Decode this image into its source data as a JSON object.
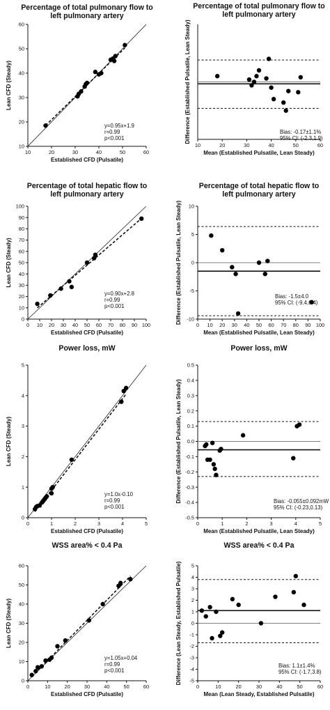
{
  "chart_data": [
    {
      "type": "scatter",
      "title": [
        "Percentage of total pulmonary flow to",
        "left pulmonary artery"
      ],
      "xlabel": "Established CFD (Pulsatile)",
      "ylabel": "Lean CFD (Steady)",
      "xlim": [
        10,
        60
      ],
      "ylim": [
        10,
        60
      ],
      "xticks": [
        10,
        20,
        30,
        40,
        50,
        60
      ],
      "yticks": [
        10,
        20,
        30,
        40,
        50,
        60
      ],
      "identity_line": true,
      "fit": {
        "slope": 0.95,
        "intercept": 1.9
      },
      "stats": [
        "y=0.95x+1.9",
        "r=0.99",
        "p<0.001"
      ],
      "x": [
        17.5,
        31,
        31.5,
        32.5,
        34,
        34.5,
        35,
        38.5,
        40,
        41,
        45,
        46,
        46.5,
        47,
        51
      ],
      "y": [
        18.5,
        30.5,
        31.5,
        32.5,
        34.5,
        35.5,
        36,
        40.5,
        39.5,
        40,
        45.5,
        46,
        45,
        47,
        51.5
      ]
    },
    {
      "type": "scatter",
      "title": [
        "Percentage of total pulmonary flow to",
        "left pulmonary artery"
      ],
      "xlabel": "Mean (Established Pulsatile, Lean Steady)",
      "ylabel": "Difference (Established Pulsatile, Lean Steady)",
      "xlim": [
        10,
        60
      ],
      "ylim": [
        -5,
        5
      ],
      "xticks": [
        10,
        20,
        30,
        40,
        50,
        60
      ],
      "bias": -0.17,
      "loa": [
        -2.3,
        1.9
      ],
      "stats": [
        "Bias: -0.17±1.1%",
        "95% CI: (-2.3,1.9)"
      ],
      "x": [
        18,
        31,
        32,
        33,
        34,
        35,
        38,
        39,
        40,
        41,
        45,
        46,
        47,
        51,
        52
      ],
      "y": [
        0.5,
        0.2,
        -0.3,
        0,
        0.5,
        1.0,
        0.3,
        2.0,
        -0.5,
        -1.5,
        -1.8,
        -2.5,
        -0.8,
        -0.9,
        0.4
      ]
    },
    {
      "type": "scatter",
      "title": [
        "Percentage of total hepatic flow to",
        "left pulmonary artery"
      ],
      "xlabel": "Established CFD (Pulsatile)",
      "ylabel": "Lean CFD (Steady)",
      "xlim": [
        0,
        100
      ],
      "ylim": [
        0,
        100
      ],
      "xticks": [
        0,
        10,
        20,
        30,
        40,
        50,
        60,
        70,
        80,
        90,
        100
      ],
      "yticks": [
        0,
        10,
        20,
        30,
        40,
        50,
        60,
        70,
        80,
        90,
        100
      ],
      "identity_line": true,
      "fit": {
        "slope": 0.9,
        "intercept": 2.8
      },
      "stats": [
        "y=0.90x+2.8",
        "r=0.99",
        "p<0.001"
      ],
      "x": [
        8,
        19,
        28,
        35,
        37,
        50,
        56,
        57,
        96
      ],
      "y": [
        13.5,
        21,
        27,
        33.5,
        28.5,
        50,
        54,
        57,
        89
      ]
    },
    {
      "type": "scatter",
      "title": [
        "Percentage of total hepatic flow to",
        "left pulmonary artery"
      ],
      "xlabel": "Mean (Established Pulsatile, Lean Steady)",
      "ylabel": "Difference (Established Pulsatile, Lean Steady)",
      "xlim": [
        0,
        100
      ],
      "ylim": [
        -10,
        10
      ],
      "xticks": [
        0,
        10,
        20,
        30,
        40,
        50,
        60,
        70,
        80,
        90,
        100
      ],
      "yticks": [
        -10,
        -5,
        0,
        5,
        10
      ],
      "bias": -1.5,
      "loa": [
        -9.4,
        6.4
      ],
      "stats": [
        "Bias: -1.5±4.0",
        "95% CI: (-9.4,6.4)"
      ],
      "x": [
        11,
        20,
        28,
        31,
        33,
        50,
        55,
        57,
        93
      ],
      "y": [
        4.8,
        2.2,
        -0.8,
        -2,
        -9,
        0,
        -2,
        0.3,
        -7
      ]
    },
    {
      "type": "scatter",
      "title": [
        "Power loss, mW"
      ],
      "xlabel": "Established CFD (Pulsatile)",
      "ylabel": "Lean CFD (Steady)",
      "xlim": [
        0,
        5
      ],
      "ylim": [
        0,
        5
      ],
      "xticks": [
        0,
        1,
        2,
        3,
        4,
        5
      ],
      "yticks": [
        0,
        1,
        2,
        3,
        4,
        5
      ],
      "identity_line": true,
      "fit": {
        "slope": 1.0,
        "intercept": -0.1
      },
      "stats": [
        "y=1.0x-0.10",
        "r=0.99",
        "p<0.001"
      ],
      "x": [
        0.3,
        0.35,
        0.4,
        0.5,
        0.6,
        0.65,
        0.7,
        0.75,
        0.8,
        1.0,
        1.0,
        1.05,
        1.85,
        3.95,
        4.05,
        4.15
      ],
      "y": [
        0.28,
        0.35,
        0.38,
        0.4,
        0.5,
        0.55,
        0.6,
        0.65,
        0.7,
        0.8,
        0.95,
        1.0,
        1.9,
        3.8,
        4.15,
        4.25
      ]
    },
    {
      "type": "scatter",
      "title": [
        "Power loss, mW"
      ],
      "xlabel": "Mean (Established Pulsatile, Lean Steady)",
      "ylabel": "Difference (Established Pulsatile, Lean Steady)",
      "xlim": [
        0,
        5
      ],
      "ylim": [
        -0.5,
        0.5
      ],
      "xticks": [
        0,
        1,
        2,
        3,
        4,
        5
      ],
      "yticks": [
        -0.5,
        -0.4,
        -0.3,
        -0.2,
        -0.1,
        0.0,
        0.1,
        0.2,
        0.3,
        0.4,
        0.5
      ],
      "bias": -0.055,
      "loa": [
        -0.23,
        0.13
      ],
      "stats": [
        "Bias: -0.055±0.092mW",
        "95% CI: (-0.23,0.13)"
      ],
      "x": [
        0.3,
        0.35,
        0.4,
        0.5,
        0.6,
        0.65,
        0.7,
        0.75,
        0.9,
        0.95,
        1.85,
        3.9,
        4.05,
        4.15
      ],
      "y": [
        -0.03,
        -0.02,
        -0.12,
        -0.12,
        -0.01,
        -0.15,
        -0.18,
        -0.22,
        -0.06,
        -0.05,
        0.04,
        -0.11,
        0.1,
        0.11
      ]
    },
    {
      "type": "scatter",
      "title": [
        "WSS area% < 0.4 Pa"
      ],
      "xlabel": "Established CFD (Pulsatile)",
      "ylabel": "Lean CFD (Steady)",
      "xlim": [
        0,
        60
      ],
      "ylim": [
        0,
        60
      ],
      "xticks": [
        0,
        10,
        20,
        30,
        40,
        50,
        60
      ],
      "yticks": [
        0,
        10,
        20,
        30,
        40,
        50,
        60
      ],
      "identity_line": true,
      "fit": {
        "slope": 1.05,
        "intercept": 0.04
      },
      "stats": [
        "y=1.05x+0.04",
        "r=0.99",
        "p<0.001"
      ],
      "x": [
        2,
        4,
        5,
        7,
        9,
        11,
        12,
        15,
        19,
        31,
        38,
        46,
        47,
        52
      ],
      "y": [
        3,
        5,
        7,
        7.5,
        10.5,
        11,
        12,
        18,
        21,
        31.5,
        40,
        49.5,
        51,
        53
      ]
    },
    {
      "type": "scatter",
      "title": [
        "WSS area% < 0.4 Pa"
      ],
      "xlabel": "Mean (Lean Steady, Established Pulsatile)",
      "ylabel": "Difference (Lean Steady, Established Pulsatile)",
      "xlim": [
        0,
        60
      ],
      "ylim": [
        -5,
        5
      ],
      "xticks": [
        0,
        10,
        20,
        30,
        40,
        50,
        60
      ],
      "yticks": [
        -5,
        -4,
        -3,
        -2,
        -1,
        0,
        1,
        2,
        3,
        4,
        5
      ],
      "bias": 1.1,
      "loa": [
        -1.7,
        3.8
      ],
      "stats": [
        "Bias: 1.1±1.4%",
        "95% CI: (-1.7,3.8)"
      ],
      "x": [
        2,
        4,
        6,
        7,
        9,
        11,
        12,
        17,
        20,
        31,
        38,
        47,
        48,
        52
      ],
      "y": [
        1.1,
        0.6,
        1.4,
        -1.3,
        1.0,
        -1.1,
        -0.8,
        2.1,
        1.6,
        0.0,
        2.3,
        2.7,
        4.1,
        1.6
      ]
    }
  ]
}
